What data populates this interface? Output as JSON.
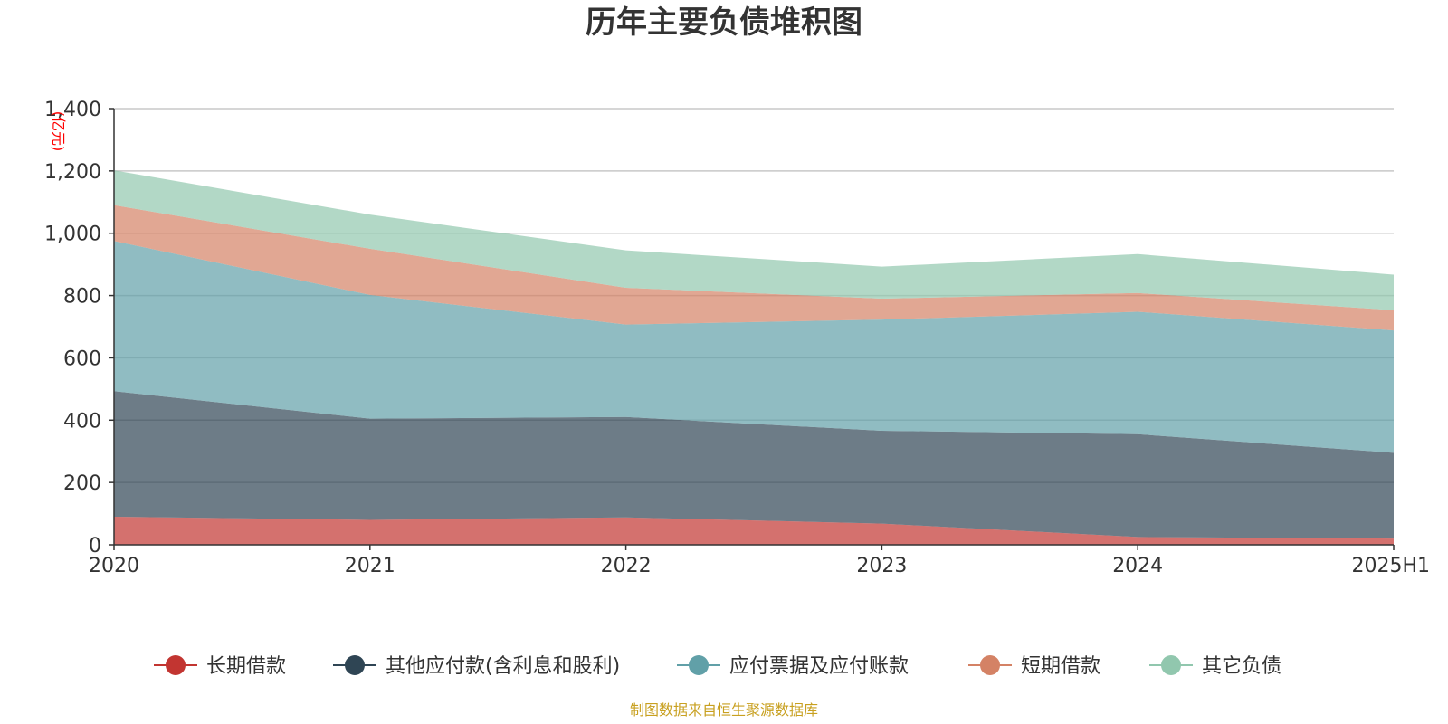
{
  "chart_data": {
    "type": "area",
    "stacked": true,
    "title": "历年主要负债堆积图",
    "unit": "(亿元)",
    "x": [
      "2020",
      "2021",
      "2022",
      "2023",
      "2024",
      "2025H1"
    ],
    "y_ticks": [
      "0",
      "200",
      "400",
      "600",
      "800",
      "1,000",
      "1,200",
      "1,400"
    ],
    "ylim": [
      0,
      1400
    ],
    "grid": true,
    "legend_position": "bottom",
    "series": [
      {
        "name": "长期借款",
        "color": "#c23531",
        "values": [
          90,
          80,
          88,
          68,
          25,
          20
        ]
      },
      {
        "name": "其他应付款(含利息和股利)",
        "color": "#2f4554",
        "values": [
          403,
          325,
          322,
          298,
          330,
          275
        ]
      },
      {
        "name": "应付票据及应付账款",
        "color": "#61a0a8",
        "values": [
          482,
          397,
          297,
          357,
          393,
          393
        ]
      },
      {
        "name": "短期借款",
        "color": "#d48265",
        "values": [
          115,
          148,
          118,
          67,
          60,
          65
        ]
      },
      {
        "name": "其它负债",
        "color": "#91c7ae",
        "values": [
          112,
          110,
          120,
          103,
          125,
          114
        ]
      }
    ],
    "source": "制图数据来自恒生聚源数据库"
  }
}
